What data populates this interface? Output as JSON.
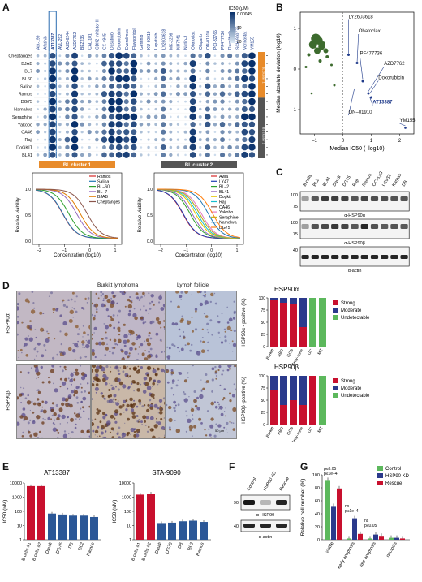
{
  "panels": {
    "A": {
      "label": "A",
      "drugs": [
        "Abt-199",
        "Afatinib",
        "AT13387",
        "AVL-292",
        "AZD-6244",
        "AZD7762",
        "BEZ235",
        "CAL-101",
        "CDK2 Inhibitor II",
        "CX-4945",
        "Dasatinib",
        "Doxorubicin",
        "Everolimus",
        "Flavopiridol",
        "Gefitinib",
        "KU-60019",
        "Lapatinib",
        "LY2603618",
        "MK-2206",
        "NU7441",
        "Nutlin-3",
        "Obatoclax",
        "Olaparib",
        "ON-01910",
        "PCI-32765",
        "PF477736",
        "Ruxolitinib",
        "SCH 900776",
        "Vorinostat",
        "YM155"
      ],
      "highlight_drug": "AT13387",
      "cell_lines": [
        "Cheptanges",
        "BJAB",
        "BL7",
        "BL60",
        "Salina",
        "Ramos",
        "DG75",
        "Namalwa",
        "Seraphine",
        "Yakobo",
        "CA46",
        "Raji",
        "DoGKIT",
        "BL41",
        "BL2",
        "LY47",
        "Awia"
      ],
      "legend_title": "IC50 (µM)",
      "legend_top": "0.00045",
      "legend_mid": "10",
      "legend_bottom": "30",
      "cluster1_label": "BL cluster 1",
      "cluster2_label": "BL cluster 2",
      "cluster1_lines": [
        "Ramos",
        "Salina",
        "BL–60",
        "BL–7",
        "BJAB",
        "Cheptanges"
      ],
      "cluster2_lines": [
        "Awia",
        "LY47",
        "BL–2",
        "BL41",
        "Dogkit",
        "Raji",
        "CA46",
        "Yakobo",
        "Seraphine",
        "Namalwa",
        "DG75"
      ],
      "cluster1_colors": [
        "#d62728",
        "#1f77b4",
        "#2ca02c",
        "#9467bd",
        "#e07b00",
        "#8c564b"
      ],
      "cluster2_colors": [
        "#d62728",
        "#1f3fb4",
        "#2ca02c",
        "#9467bd",
        "#e5c400",
        "#17becf",
        "#8c564b",
        "#e377c2",
        "#bcbd22",
        "#1f77b4",
        "#ff7f0e"
      ],
      "ylabel": "Relative viability",
      "xlabel": "Concentration (log10)",
      "x_ticks": [
        "–2",
        "–1",
        "0",
        "1"
      ],
      "y_ticks": [
        "0.0",
        "0.5",
        "1.0"
      ]
    },
    "B": {
      "label": "B",
      "xlabel": "Median IC50 (–log10)",
      "ylabel": "Median absolute deviation (log10)",
      "x_ticks": [
        "–1",
        "0",
        "1",
        "2"
      ],
      "y_ticks": [
        "–1",
        "0",
        "1"
      ],
      "annotations": [
        "LY2603618",
        "Obatoclax",
        "PF477736",
        "AZD7762",
        "Doxorubicin",
        "AT13387",
        "ON–01910",
        "YM155"
      ]
    },
    "C": {
      "label": "C",
      "lanes": [
        "B cells",
        "BL2",
        "BL41",
        "Daudi",
        "DG75",
        "Raji",
        "Ramos",
        "OCI-Ly3",
        "U2932",
        "Karpas",
        "DB"
      ],
      "blots": [
        {
          "name": "α-HSP90α",
          "mw_top": "100",
          "mw_bottom": "75"
        },
        {
          "name": "α-HSP90β",
          "mw_top": "100",
          "mw_bottom": "75"
        },
        {
          "name": "α-actin",
          "mw_top": "40",
          "mw_bottom": ""
        }
      ]
    },
    "D": {
      "label": "D",
      "header_left": "Burkitt lymphoma",
      "header_right": "Lymph follicle",
      "row1_label": "HSP90α",
      "row2_label": "HSP90β",
      "scale_label": "50 µm",
      "chart1_title": "HSP90α",
      "chart2_title": "HSP90β",
      "chart1_ylabel": "HSP90α - positive (%)",
      "chart2_ylabel": "HSP90β -positive (%)",
      "legend": [
        "Strong",
        "Moderate",
        "Undetectable"
      ],
      "legend_colors": [
        "#c8102e",
        "#2b3a8c",
        "#5cb85c"
      ],
      "y_ticks": [
        "0",
        "25",
        "50",
        "75",
        "100"
      ]
    },
    "E": {
      "label": "E",
      "chart1_title": "AT13387",
      "chart2_title": "STA-9090",
      "ylabel": "IC50 (nM)",
      "y_ticks": [
        "1",
        "10",
        "100",
        "1000",
        "10000"
      ]
    },
    "F": {
      "label": "F",
      "lanes": [
        "Control",
        "HSP90 KD",
        "Rescue"
      ],
      "mw1": "90",
      "mw2": "40",
      "blot1": "α-HSP90",
      "blot2": "α-actin"
    },
    "G": {
      "label": "G",
      "ylabel": "Relative cell number (%)",
      "legend": [
        "Control",
        "HSP90 KD",
        "Rescue"
      ],
      "legend_colors": [
        "#5cb85c",
        "#2b3a8c",
        "#c8102e"
      ],
      "y_ticks": [
        "0",
        "20",
        "40",
        "60",
        "80",
        "100"
      ],
      "pvals": [
        "p≤0.05",
        "p≤1e–4",
        "ns",
        "p≤1e–4",
        "ns",
        "p≤0.05"
      ]
    }
  },
  "chart_data": [
    {
      "type": "bar",
      "title": "HSP90α",
      "ylabel": "HSP90α - positive (%)",
      "categories": [
        "Burkitt",
        "ABC",
        "GCB",
        "Grey-zone",
        "GC",
        "MZ"
      ],
      "ylim": [
        0,
        100
      ],
      "series": [
        {
          "name": "Strong",
          "values": [
            95,
            90,
            88,
            40,
            0,
            0
          ]
        },
        {
          "name": "Moderate",
          "values": [
            5,
            10,
            12,
            60,
            0,
            0
          ]
        },
        {
          "name": "Undetectable",
          "values": [
            0,
            0,
            0,
            0,
            100,
            100
          ]
        }
      ]
    },
    {
      "type": "bar",
      "title": "HSP90β",
      "ylabel": "HSP90β -positive (%)",
      "categories": [
        "Burkitt",
        "ABC",
        "GCB",
        "Grey-zone",
        "GC",
        "MZ"
      ],
      "ylim": [
        0,
        100
      ],
      "series": [
        {
          "name": "Strong",
          "values": [
            70,
            40,
            50,
            40,
            100,
            0
          ]
        },
        {
          "name": "Moderate",
          "values": [
            30,
            60,
            50,
            60,
            0,
            0
          ]
        },
        {
          "name": "Undetectable",
          "values": [
            0,
            0,
            0,
            0,
            0,
            100
          ]
        }
      ]
    },
    {
      "type": "bar",
      "title": "AT13387",
      "ylabel": "IC50 (nM)",
      "categories": [
        "B cells #1",
        "B cells #2",
        "Daudi",
        "DG75",
        "DB",
        "BL2",
        "Ramos"
      ],
      "values": [
        6000,
        6000,
        70,
        60,
        50,
        50,
        40
      ],
      "colors": [
        "#c8102e",
        "#c8102e",
        "#2b5797",
        "#2b5797",
        "#2b5797",
        "#2b5797",
        "#2b5797"
      ],
      "ylim": [
        1,
        10000
      ]
    },
    {
      "type": "bar",
      "title": "STA-9090",
      "ylabel": "IC50 (nM)",
      "categories": [
        "B cells #1",
        "B cells #2",
        "Daudi",
        "DG75",
        "DB",
        "BL2",
        "Ramos"
      ],
      "values": [
        1500,
        1800,
        15,
        16,
        20,
        22,
        18
      ],
      "colors": [
        "#c8102e",
        "#c8102e",
        "#2b5797",
        "#2b5797",
        "#2b5797",
        "#2b5797",
        "#2b5797"
      ],
      "ylim": [
        1,
        10000
      ]
    },
    {
      "type": "bar",
      "ylabel": "Relative cell number (%)",
      "categories": [
        "viable",
        "early apoptosis",
        "late apoptosis",
        "necrosis"
      ],
      "ylim": [
        0,
        100
      ],
      "series": [
        {
          "name": "Control",
          "values": [
            92,
            2,
            2,
            3
          ]
        },
        {
          "name": "HSP90 KD",
          "values": [
            52,
            33,
            8,
            3
          ]
        },
        {
          "name": "Rescue",
          "values": [
            79,
            9,
            6,
            2
          ]
        }
      ]
    }
  ]
}
